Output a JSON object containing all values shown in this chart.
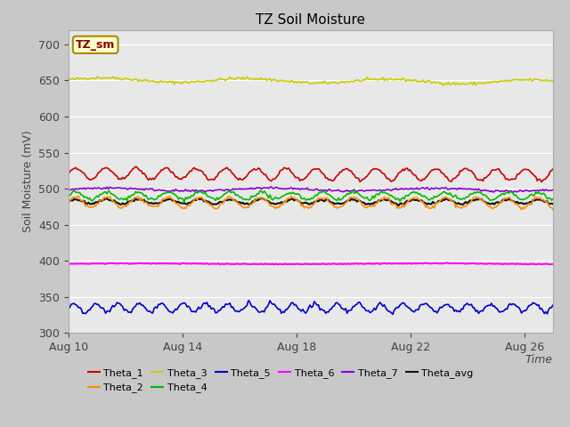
{
  "title": "TZ Soil Moisture",
  "ylabel": "Soil Moisture (mV)",
  "xlabel": "Time",
  "ylim": [
    300,
    720
  ],
  "yticks": [
    300,
    350,
    400,
    450,
    500,
    550,
    600,
    650,
    700
  ],
  "xtick_labels": [
    "Aug 10",
    "Aug 14",
    "Aug 18",
    "Aug 22",
    "Aug 26"
  ],
  "xtick_positions": [
    0,
    4,
    8,
    12,
    16
  ],
  "xlim": [
    0,
    17
  ],
  "n_points": 340,
  "fig_bg_color": "#c8c8c8",
  "plot_bg_color": "#e8e8e8",
  "grid_color": "#ffffff",
  "series": {
    "Theta_1": {
      "color": "#cc0000",
      "base": 521,
      "amp": 8,
      "freq": 1.9,
      "trend": -0.02
    },
    "Theta_2": {
      "color": "#ff8c00",
      "base": 481,
      "amp": 7,
      "freq": 1.85,
      "trend": -0.01
    },
    "Theta_3": {
      "color": "#cccc00",
      "base": 651,
      "amp": 3,
      "freq": 0.4,
      "trend": -0.025
    },
    "Theta_4": {
      "color": "#00bb00",
      "base": 490,
      "amp": 5,
      "freq": 1.85,
      "trend": 0.005
    },
    "Theta_5": {
      "color": "#0000cc",
      "base": 335,
      "amp": 6,
      "freq": 1.3,
      "trend": -0.003
    },
    "Theta_6": {
      "color": "#ff00ff",
      "base": 396,
      "amp": 0.5,
      "freq": 0.2,
      "trend": 0.0
    },
    "Theta_7": {
      "color": "#8800cc",
      "base": 499,
      "amp": 2,
      "freq": 0.35,
      "trend": -0.008
    },
    "Theta_avg": {
      "color": "#111111",
      "base": 482,
      "amp": 3,
      "freq": 1.85,
      "trend": -0.004
    }
  },
  "legend_box_facecolor": "#ffffcc",
  "legend_box_edgecolor": "#aa8800",
  "legend_box_textcolor": "#880000",
  "legend_box_label": "TZ_sm",
  "title_fontsize": 11,
  "axis_label_fontsize": 9,
  "tick_fontsize": 9,
  "legend_fontsize": 8,
  "legend_row1": [
    "Theta_1",
    "Theta_2",
    "Theta_3",
    "Theta_4",
    "Theta_5",
    "Theta_6"
  ],
  "legend_row2": [
    "Theta_7",
    "Theta_avg"
  ]
}
